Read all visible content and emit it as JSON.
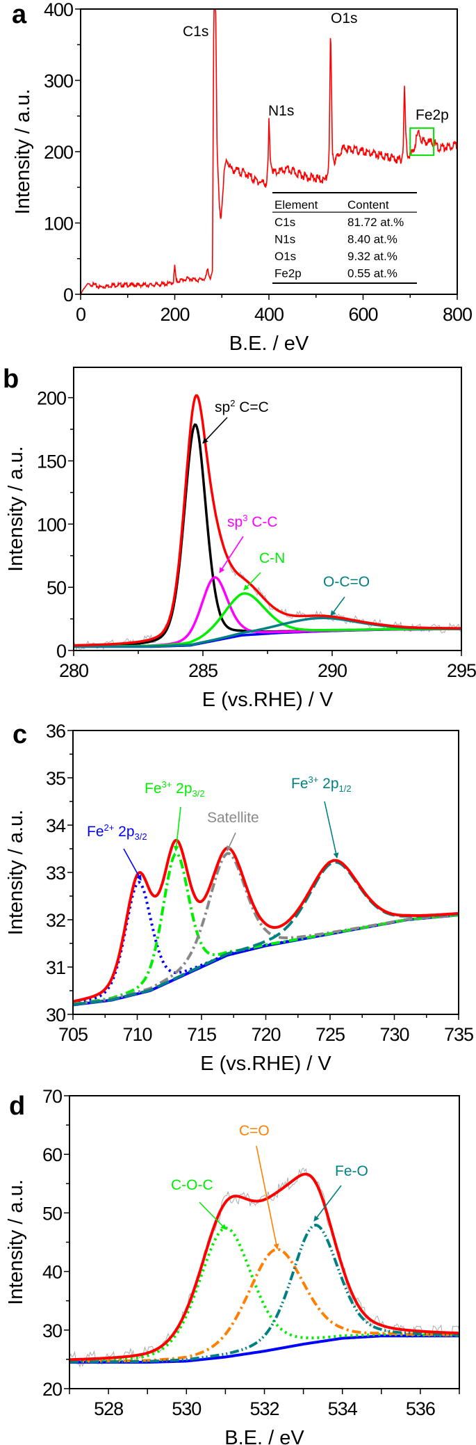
{
  "chart_data": [
    {
      "panel": "a",
      "type": "line",
      "xlabel": "B.E. / eV",
      "ylabel": "Intensity / a.u.",
      "xlim": [
        0,
        800
      ],
      "ylim": [
        0,
        400
      ],
      "x_ticks": [
        "0",
        "200",
        "400",
        "600",
        "800"
      ],
      "y_ticks": [
        "0",
        "100",
        "200",
        "300",
        "400"
      ],
      "grid": false,
      "series": [
        {
          "color": "#ff0000",
          "points": [
            [
              0,
              0
            ],
            [
              5,
              6
            ],
            [
              15,
              15
            ],
            [
              30,
              13
            ],
            [
              40,
              10
            ],
            [
              70,
              13
            ],
            [
              100,
              13
            ],
            [
              150,
              13
            ],
            [
              190,
              15
            ],
            [
              197,
              17
            ],
            [
              200,
              40
            ],
            [
              203,
              18
            ],
            [
              230,
              22
            ],
            [
              250,
              20
            ],
            [
              265,
              22
            ],
            [
              270,
              35
            ],
            [
              275,
              22
            ],
            [
              280,
              30
            ],
            [
              283,
              400
            ],
            [
              287,
              400
            ],
            [
              290,
              200
            ],
            [
              295,
              120
            ],
            [
              298,
              105
            ],
            [
              305,
              170
            ],
            [
              310,
              190
            ],
            [
              320,
              175
            ],
            [
              350,
              170
            ],
            [
              370,
              160
            ],
            [
              395,
              155
            ],
            [
              398,
              180
            ],
            [
              400,
              243
            ],
            [
              403,
              190
            ],
            [
              410,
              170
            ],
            [
              440,
              175
            ],
            [
              480,
              165
            ],
            [
              520,
              160
            ],
            [
              525,
              170
            ],
            [
              528,
              200
            ],
            [
              531,
              373
            ],
            [
              535,
              200
            ],
            [
              540,
              185
            ],
            [
              550,
              200
            ],
            [
              560,
              205
            ],
            [
              600,
              200
            ],
            [
              650,
              193
            ],
            [
              680,
              188
            ],
            [
              685,
              200
            ],
            [
              688,
              292
            ],
            [
              691,
              220
            ],
            [
              695,
              195
            ],
            [
              705,
              198
            ],
            [
              712,
              215
            ],
            [
              718,
              228
            ],
            [
              725,
              215
            ],
            [
              750,
              213
            ],
            [
              760,
              205
            ],
            [
              800,
              210
            ]
          ]
        }
      ],
      "annotations": [
        {
          "label": "C1s",
          "x": 262
        },
        {
          "label": "N1s",
          "x": 400
        },
        {
          "label": "O1s",
          "x": 531
        },
        {
          "label": "Fe2p",
          "x": 725
        }
      ],
      "highlight_box": {
        "x": [
          700,
          750
        ],
        "y": [
          195,
          233
        ],
        "color": "#00e000"
      },
      "table": {
        "headers": [
          "Element",
          "Content"
        ],
        "rows": [
          [
            "C1s",
            "81.72 at.%"
          ],
          [
            "N1s",
            "8.40 at.%"
          ],
          [
            "O1s",
            "9.32 at.%"
          ],
          [
            "Fe2p",
            "0.55 at.%"
          ]
        ]
      }
    },
    {
      "panel": "b",
      "type": "line",
      "xlabel": "E (vs.RHE) / V",
      "ylabel": "Intensity / a.u.",
      "xlim": [
        280,
        295
      ],
      "ylim": [
        0,
        224
      ],
      "x_ticks": [
        "280",
        "285",
        "290",
        "295"
      ],
      "y_ticks": [
        "0",
        "50",
        "100",
        "150",
        "200"
      ],
      "background": {
        "color": "#0000ff",
        "points": [
          [
            280,
            3
          ],
          [
            283,
            3
          ],
          [
            284.5,
            4
          ],
          [
            285.5,
            8
          ],
          [
            286.5,
            12
          ],
          [
            288,
            14
          ],
          [
            290,
            15.5
          ],
          [
            292,
            16.5
          ],
          [
            295,
            17
          ]
        ]
      },
      "components": [
        {
          "name": "sp2 C=C",
          "center": 284.7,
          "height": 174,
          "fwhm": 1.0,
          "color": "#000000",
          "style": "solid"
        },
        {
          "name": "sp3 C-C",
          "center": 285.45,
          "height": 50,
          "fwhm": 1.2,
          "color": "#ff00ff",
          "style": "solid"
        },
        {
          "name": "C-N",
          "center": 286.6,
          "height": 33,
          "fwhm": 1.9,
          "color": "#00ee00",
          "style": "solid"
        },
        {
          "name": "O-C=O",
          "center": 289.5,
          "height": 10.5,
          "fwhm": 3.6,
          "color": "#008080",
          "style": "solid"
        }
      ],
      "envelope_color": "#ff0000",
      "raw_color": "#aaaaaa",
      "annotations": [
        {
          "parts": [
            {
              "t": "sp"
            },
            {
              "t": "2",
              "s": "sup"
            },
            {
              "t": " C=C"
            }
          ],
          "color": "#000000"
        },
        {
          "parts": [
            {
              "t": "sp"
            },
            {
              "t": "3",
              "s": "sup"
            },
            {
              "t": " C-C"
            }
          ],
          "color": "#ff00ff"
        },
        {
          "parts": [
            {
              "t": "C-N"
            }
          ],
          "color": "#00ee00"
        },
        {
          "parts": [
            {
              "t": "O-C=O"
            }
          ],
          "color": "#008080"
        }
      ]
    },
    {
      "panel": "c",
      "type": "line",
      "xlabel": "E (vs.RHE) / V",
      "ylabel": "Intensity / a.u.",
      "xlim": [
        705,
        735
      ],
      "ylim": [
        30,
        36
      ],
      "x_ticks": [
        "705",
        "710",
        "715",
        "720",
        "725",
        "730",
        "735"
      ],
      "y_ticks": [
        "30",
        "31",
        "32",
        "33",
        "34",
        "35",
        "36"
      ],
      "background": {
        "color": "#0000ff",
        "points": [
          [
            705,
            30.2
          ],
          [
            708,
            30.3
          ],
          [
            711,
            30.5
          ],
          [
            713,
            30.75
          ],
          [
            715,
            31.0
          ],
          [
            717,
            31.25
          ],
          [
            720,
            31.45
          ],
          [
            722,
            31.55
          ],
          [
            725,
            31.7
          ],
          [
            728,
            31.85
          ],
          [
            731,
            32.0
          ],
          [
            735,
            32.1
          ]
        ]
      },
      "components": [
        {
          "name": "Fe2+ 2p3/2",
          "center": 710.1,
          "height": 2.35,
          "fwhm": 2.4,
          "color": "#0000ff",
          "style": "dot"
        },
        {
          "name": "Fe3+ 2p3/2",
          "center": 713.0,
          "height": 2.65,
          "fwhm": 2.4,
          "color": "#00ee00",
          "style": "dashdot"
        },
        {
          "name": "Satellite",
          "center": 717.0,
          "height": 2.15,
          "fwhm": 3.4,
          "color": "#888888",
          "style": "dashdot"
        },
        {
          "name": "Fe3+ 2p1/2",
          "center": 725.3,
          "height": 1.5,
          "fwhm": 4.6,
          "color": "#008080",
          "style": "dash"
        }
      ],
      "envelope_color": "#ff0000",
      "annotations": [
        {
          "parts": [
            {
              "t": "Fe"
            },
            {
              "t": "2+",
              "s": "sup"
            },
            {
              "t": " 2p"
            },
            {
              "t": "3/2",
              "s": "sub"
            }
          ],
          "color": "#0000ff"
        },
        {
          "parts": [
            {
              "t": "Fe"
            },
            {
              "t": "3+",
              "s": "sup"
            },
            {
              "t": " 2p"
            },
            {
              "t": "3/2",
              "s": "sub"
            }
          ],
          "color": "#00ee00"
        },
        {
          "parts": [
            {
              "t": "Satellite"
            }
          ],
          "color": "#888888"
        },
        {
          "parts": [
            {
              "t": "Fe"
            },
            {
              "t": "3+",
              "s": "sup"
            },
            {
              "t": " 2p"
            },
            {
              "t": "1/2",
              "s": "sub"
            }
          ],
          "color": "#008080"
        }
      ]
    },
    {
      "panel": "d",
      "type": "line",
      "xlabel": "B.E. / eV",
      "ylabel": "Intensity / a.u.",
      "xlim": [
        527,
        537
      ],
      "ylim": [
        20,
        70
      ],
      "x_ticks": [
        "528",
        "530",
        "532",
        "534",
        "536"
      ],
      "y_ticks": [
        "20",
        "30",
        "40",
        "50",
        "60",
        "70"
      ],
      "background": {
        "color": "#0000ff",
        "points": [
          [
            527,
            24.5
          ],
          [
            529,
            24.5
          ],
          [
            530,
            24.7
          ],
          [
            531,
            25.4
          ],
          [
            532,
            26.4
          ],
          [
            533,
            27.6
          ],
          [
            534,
            28.6
          ],
          [
            535,
            29
          ],
          [
            537,
            29
          ]
        ]
      },
      "components": [
        {
          "name": "C-O-C",
          "center": 531.0,
          "height": 22,
          "fwhm": 1.6,
          "color": "#00ee00",
          "style": "dot"
        },
        {
          "name": "C=O",
          "center": 532.3,
          "height": 17,
          "fwhm": 1.7,
          "color": "#ff8000",
          "style": "dashdot"
        },
        {
          "name": "Fe-O",
          "center": 533.3,
          "height": 20,
          "fwhm": 1.4,
          "color": "#008080",
          "style": "dashdotdot"
        }
      ],
      "envelope_color": "#ff0000",
      "raw_color": "#aaaaaa",
      "annotations": [
        {
          "parts": [
            {
              "t": "C-O-C"
            }
          ],
          "color": "#00ee00"
        },
        {
          "parts": [
            {
              "t": "C=O"
            }
          ],
          "color": "#ff8000"
        },
        {
          "parts": [
            {
              "t": "Fe-O"
            }
          ],
          "color": "#008080"
        }
      ]
    }
  ]
}
